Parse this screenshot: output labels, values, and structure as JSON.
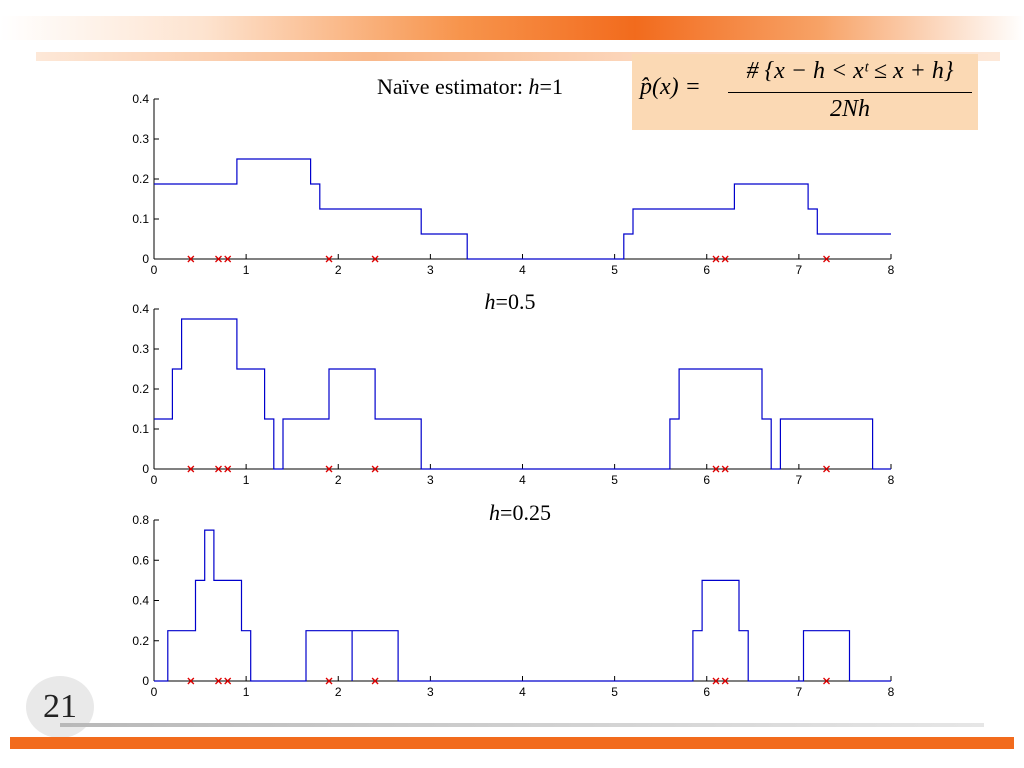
{
  "slide": {
    "number": "21",
    "formula": {
      "lhs": "p̂(x) =",
      "numerator": "# {x − h < xᵗ ≤ x + h}",
      "denominator": "2Nh"
    }
  },
  "colors": {
    "accent": "#f26b1d",
    "line": "#0000cc",
    "marker": "#dd0000",
    "formula_bg": "#fbd9b4"
  },
  "chart_data": [
    {
      "type": "line",
      "title": "Naïve estimator: h=1",
      "xlim": [
        0,
        8
      ],
      "ylim": [
        0,
        0.4
      ],
      "xticks": [
        "0",
        "1",
        "2",
        "3",
        "4",
        "5",
        "6",
        "7",
        "8"
      ],
      "yticks": [
        "0",
        "0.1",
        "0.2",
        "0.3",
        "0.4"
      ],
      "samples": [
        0.4,
        0.7,
        0.8,
        1.9,
        2.4,
        6.1,
        6.2,
        7.3
      ],
      "series": [
        {
          "x": [
            0,
            0.9,
            0.9,
            1.7,
            1.7,
            1.8,
            1.8,
            2.9,
            2.9,
            3.4,
            3.4,
            5.1,
            5.1,
            5.2,
            5.2,
            6.3,
            6.3,
            7.1,
            7.1,
            7.2,
            7.2,
            8
          ],
          "y": [
            0.1875,
            0.1875,
            0.25,
            0.25,
            0.1875,
            0.1875,
            0.125,
            0.125,
            0.0625,
            0.0625,
            0,
            0,
            0.0625,
            0.0625,
            0.125,
            0.125,
            0.1875,
            0.1875,
            0.125,
            0.125,
            0.0625,
            0.0625
          ]
        }
      ]
    },
    {
      "type": "line",
      "title": "h=0.5",
      "xlim": [
        0,
        8
      ],
      "ylim": [
        0,
        0.4
      ],
      "xticks": [
        "0",
        "1",
        "2",
        "3",
        "4",
        "5",
        "6",
        "7",
        "8"
      ],
      "yticks": [
        "0",
        "0.1",
        "0.2",
        "0.3",
        "0.4"
      ],
      "samples": [
        0.4,
        0.7,
        0.8,
        1.9,
        2.4,
        6.1,
        6.2,
        7.3
      ],
      "series": [
        {
          "x": [
            0,
            0.2,
            0.2,
            0.3,
            0.3,
            0.9,
            0.9,
            1.2,
            1.2,
            1.3,
            1.3,
            1.4,
            1.4,
            1.9,
            1.9,
            2.4,
            2.4,
            2.9,
            2.9,
            5.6,
            5.6,
            5.7,
            5.7,
            6.6,
            6.6,
            6.7,
            6.7,
            6.8,
            6.8,
            7.8,
            7.8,
            8
          ],
          "y": [
            0.125,
            0.125,
            0.25,
            0.25,
            0.375,
            0.375,
            0.25,
            0.25,
            0.125,
            0.125,
            0,
            0,
            0.125,
            0.125,
            0.25,
            0.25,
            0.125,
            0.125,
            0,
            0,
            0.125,
            0.125,
            0.25,
            0.25,
            0.125,
            0.125,
            0,
            0,
            0.125,
            0.125,
            0,
            0
          ]
        }
      ]
    },
    {
      "type": "line",
      "title": "h=0.25",
      "xlim": [
        0,
        8
      ],
      "ylim": [
        0,
        0.8
      ],
      "xticks": [
        "0",
        "1",
        "2",
        "3",
        "4",
        "5",
        "6",
        "7",
        "8"
      ],
      "yticks": [
        "0",
        "0.2",
        "0.4",
        "0.6",
        "0.8"
      ],
      "samples": [
        0.4,
        0.7,
        0.8,
        1.9,
        2.4,
        6.1,
        6.2,
        7.3
      ],
      "series": [
        {
          "x": [
            0,
            0.15,
            0.15,
            0.45,
            0.45,
            0.55,
            0.55,
            0.65,
            0.65,
            0.95,
            0.95,
            1.05,
            1.05,
            1.65,
            1.65,
            2.15,
            2.15,
            2.15,
            2.15,
            2.65,
            2.65,
            5.85,
            5.85,
            5.95,
            5.95,
            6.35,
            6.35,
            6.45,
            6.45,
            7.05,
            7.05,
            7.55,
            7.55,
            8
          ],
          "y": [
            0,
            0,
            0.25,
            0.25,
            0.5,
            0.5,
            0.75,
            0.75,
            0.5,
            0.5,
            0.25,
            0.25,
            0,
            0,
            0.25,
            0.25,
            0,
            0,
            0.25,
            0.25,
            0,
            0,
            0.25,
            0.25,
            0.5,
            0.5,
            0.25,
            0.25,
            0,
            0,
            0.25,
            0.25,
            0,
            0
          ]
        }
      ]
    }
  ]
}
